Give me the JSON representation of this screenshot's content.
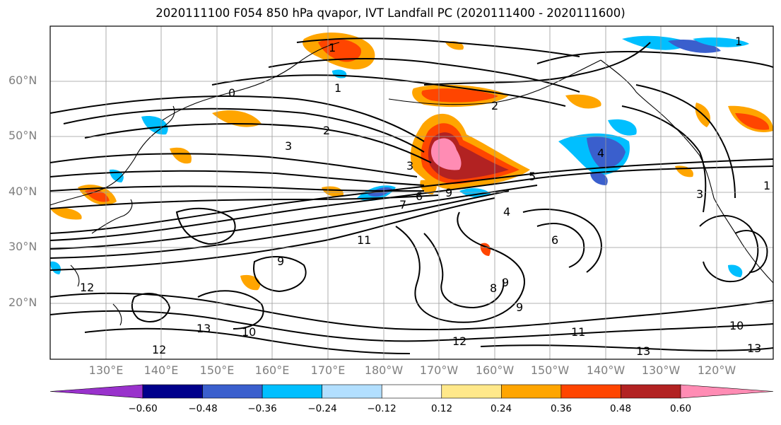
{
  "title": "2020111100 F054 850 hPa qvapor, IVT Landfall PC (2020111400 - 2020111600)",
  "lat_labels": [
    "60°N",
    "50°N",
    "40°N",
    "30°N",
    "20°N"
  ],
  "lon_labels": [
    "130°E",
    "140°E",
    "150°E",
    "160°E",
    "170°E",
    "180°W",
    "170°W",
    "160°W",
    "150°W",
    "140°W",
    "130°W",
    "120°W"
  ],
  "contour_labels": [
    "0",
    "1",
    "1",
    "1",
    "2",
    "2",
    "3",
    "3",
    "3",
    "4",
    "4",
    "5",
    "6",
    "6",
    "7",
    "8",
    "9",
    "9",
    "9",
    "9",
    "10",
    "11",
    "11",
    "12",
    "12",
    "12",
    "13",
    "13",
    "13",
    "10",
    "1"
  ],
  "colorbar": {
    "colors": [
      "#9932cc",
      "#00008b",
      "#3a5fcd",
      "#00bfff",
      "#b2dfff",
      "#ffffff",
      "#ffe88a",
      "#ffa500",
      "#ff4500",
      "#b22222",
      "#ff8cb4"
    ],
    "tick_labels": [
      "−0.60",
      "−0.48",
      "−0.36",
      "−0.24",
      "−0.12",
      "0.12",
      "0.24",
      "0.36",
      "0.48",
      "0.60"
    ]
  }
}
